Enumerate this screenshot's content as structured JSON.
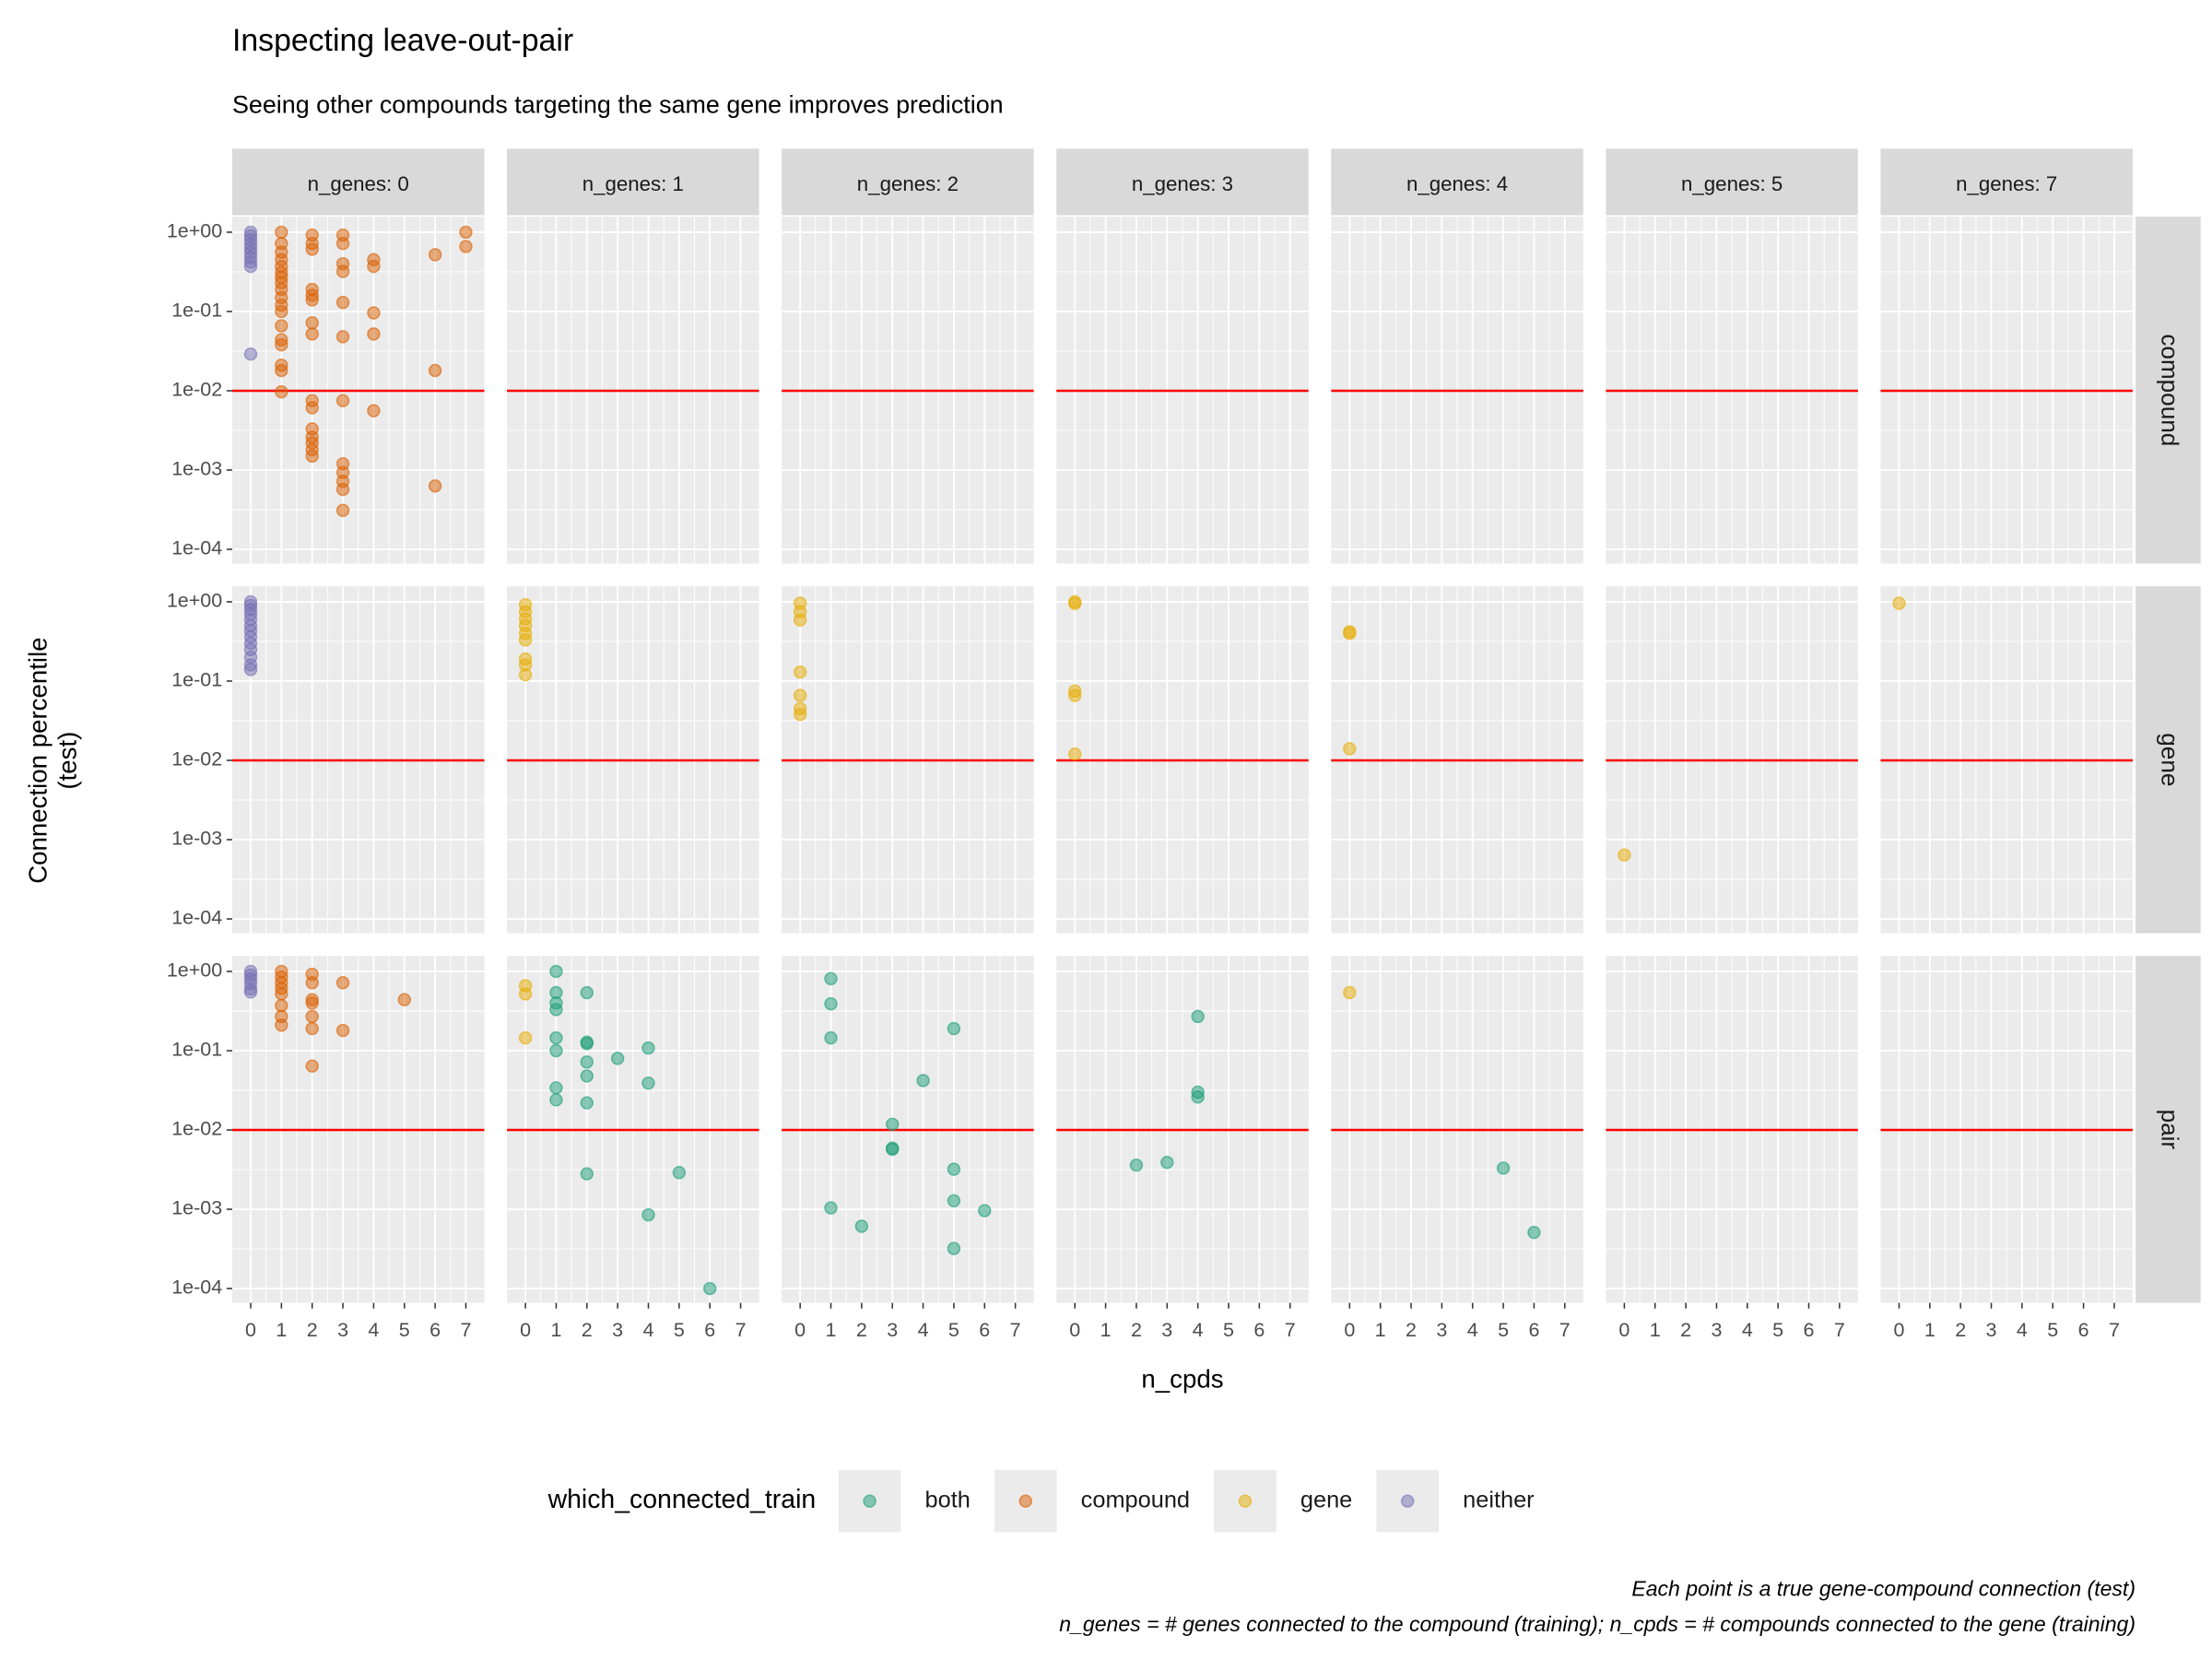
{
  "chart_data": {
    "type": "scatter",
    "title": "Inspecting leave-out-pair",
    "subtitle": "Seeing other compounds targeting the same gene improves prediction",
    "x_label": "n_cpds",
    "y_label": [
      "Connection percentile",
      "(test)"
    ],
    "caption": [
      "Each point is a true gene-compound connection (test)",
      "n_genes = # genes connected to the compound (training); n_cpds = # compounds connected to the gene (training)"
    ],
    "legend_title": "which_connected_train",
    "facet_columns": [
      "n_genes: 0",
      "n_genes: 1",
      "n_genes: 2",
      "n_genes: 3",
      "n_genes: 4",
      "n_genes: 5",
      "n_genes: 7"
    ],
    "facet_rows": [
      "compound",
      "gene",
      "pair"
    ],
    "log_y": true,
    "grid": true,
    "hline": {
      "value": 0.01,
      "color": "#ff0000"
    },
    "xlim": [
      -0.6,
      7.6
    ],
    "xticks": [
      0,
      1,
      2,
      3,
      4,
      5,
      6,
      7
    ],
    "ylim": [
      6.6e-05,
      1.57
    ],
    "yticks": [
      {
        "value": 0.0001,
        "label": "1e-04"
      },
      {
        "value": 0.001,
        "label": "1e-03"
      },
      {
        "value": 0.01,
        "label": "1e-02"
      },
      {
        "value": 0.1,
        "label": "1e-01"
      },
      {
        "value": 1,
        "label": "1e+00"
      }
    ],
    "series": [
      {
        "name": "both",
        "color": "#1b9e77",
        "x": [
          1,
          1,
          1,
          1,
          1,
          1,
          1,
          1,
          2,
          2,
          2,
          2,
          2,
          2,
          2,
          3,
          4,
          4,
          4,
          5,
          6,
          1,
          1,
          1,
          1,
          2,
          3,
          3,
          3,
          4,
          5,
          5,
          5,
          5,
          6,
          2,
          3,
          4,
          4,
          4,
          5,
          6
        ],
        "y": [
          1.0,
          0.54,
          0.4,
          0.33,
          0.145,
          0.1,
          0.034,
          0.024,
          0.54,
          0.128,
          0.123,
          0.072,
          0.048,
          0.022,
          0.0028,
          0.08,
          0.108,
          0.039,
          0.00085,
          0.0029,
          0.0001,
          0.81,
          0.39,
          0.145,
          0.00104,
          0.00061,
          0.0118,
          0.0059,
          0.0057,
          0.042,
          0.19,
          0.0032,
          0.00128,
          0.00032,
          0.00096,
          0.0036,
          0.0039,
          0.27,
          0.03,
          0.026,
          0.0033,
          0.00051
        ],
        "panel_row": [
          2,
          2,
          2,
          2,
          2,
          2,
          2,
          2,
          2,
          2,
          2,
          2,
          2,
          2,
          2,
          2,
          2,
          2,
          2,
          2,
          2,
          2,
          2,
          2,
          2,
          2,
          2,
          2,
          2,
          2,
          2,
          2,
          2,
          2,
          2,
          2,
          2,
          2,
          2,
          2,
          2,
          2
        ],
        "panel_col": [
          1,
          1,
          1,
          1,
          1,
          1,
          1,
          1,
          1,
          1,
          1,
          1,
          1,
          1,
          1,
          1,
          1,
          1,
          1,
          1,
          1,
          2,
          2,
          2,
          2,
          2,
          2,
          2,
          2,
          2,
          2,
          2,
          2,
          2,
          2,
          3,
          3,
          3,
          3,
          3,
          4,
          4
        ]
      },
      {
        "name": "compound",
        "color": "#d95f02",
        "x": [
          1,
          1,
          1,
          1,
          1,
          1,
          1,
          1,
          1,
          1,
          1,
          1,
          1,
          1,
          1,
          1,
          1,
          1,
          2,
          2,
          2,
          2,
          2,
          2,
          2,
          2,
          2,
          2,
          2,
          2,
          2,
          2,
          2,
          3,
          3,
          3,
          3,
          3,
          3,
          3,
          3,
          3,
          3,
          3,
          3,
          4,
          4,
          4,
          4,
          4,
          6,
          6,
          6,
          7,
          7,
          1,
          1,
          1,
          1,
          1,
          1,
          1,
          1,
          2,
          2,
          2,
          2,
          2,
          2,
          2,
          3,
          3,
          5
        ],
        "y": [
          1.0,
          0.72,
          0.56,
          0.45,
          0.37,
          0.31,
          0.27,
          0.23,
          0.19,
          0.15,
          0.12,
          0.1,
          0.066,
          0.044,
          0.038,
          0.021,
          0.018,
          0.0097,
          0.92,
          0.72,
          0.61,
          0.19,
          0.16,
          0.14,
          0.072,
          0.052,
          0.0075,
          0.0061,
          0.0033,
          0.0026,
          0.0022,
          0.0018,
          0.0015,
          0.92,
          0.72,
          0.4,
          0.32,
          0.13,
          0.048,
          0.0075,
          0.0012,
          0.00093,
          0.00072,
          0.00057,
          0.00031,
          0.45,
          0.37,
          0.096,
          0.052,
          0.0056,
          0.52,
          0.018,
          0.00063,
          1.0,
          0.66,
          1.0,
          0.85,
          0.72,
          0.61,
          0.52,
          0.37,
          0.27,
          0.21,
          0.92,
          0.72,
          0.44,
          0.4,
          0.27,
          0.19,
          0.064,
          0.72,
          0.18,
          0.44
        ],
        "panel_row": [
          0,
          0,
          0,
          0,
          0,
          0,
          0,
          0,
          0,
          0,
          0,
          0,
          0,
          0,
          0,
          0,
          0,
          0,
          0,
          0,
          0,
          0,
          0,
          0,
          0,
          0,
          0,
          0,
          0,
          0,
          0,
          0,
          0,
          0,
          0,
          0,
          0,
          0,
          0,
          0,
          0,
          0,
          0,
          0,
          0,
          0,
          0,
          0,
          0,
          0,
          0,
          0,
          0,
          0,
          0,
          2,
          2,
          2,
          2,
          2,
          2,
          2,
          2,
          2,
          2,
          2,
          2,
          2,
          2,
          2,
          2,
          2,
          2
        ],
        "panel_col": [
          0,
          0,
          0,
          0,
          0,
          0,
          0,
          0,
          0,
          0,
          0,
          0,
          0,
          0,
          0,
          0,
          0,
          0,
          0,
          0,
          0,
          0,
          0,
          0,
          0,
          0,
          0,
          0,
          0,
          0,
          0,
          0,
          0,
          0,
          0,
          0,
          0,
          0,
          0,
          0,
          0,
          0,
          0,
          0,
          0,
          0,
          0,
          0,
          0,
          0,
          0,
          0,
          0,
          0,
          0,
          0,
          0,
          0,
          0,
          0,
          0,
          0,
          0,
          0,
          0,
          0,
          0,
          0,
          0,
          0,
          0,
          0,
          0
        ]
      },
      {
        "name": "gene",
        "color": "#e6ab02",
        "x": [
          0,
          0,
          0,
          0,
          0,
          0,
          0,
          0,
          0,
          0,
          0,
          0,
          0,
          0,
          0,
          0,
          0,
          0,
          0,
          0,
          0,
          0,
          0,
          0,
          0,
          0,
          0,
          0,
          0,
          0
        ],
        "y": [
          0.92,
          0.75,
          0.61,
          0.5,
          0.4,
          0.33,
          0.19,
          0.16,
          0.12,
          0.96,
          0.75,
          0.59,
          0.13,
          0.066,
          0.045,
          0.038,
          1.0,
          0.95,
          0.075,
          0.066,
          0.012,
          0.42,
          0.4,
          0.014,
          0.00064,
          0.96,
          0.66,
          0.52,
          0.145,
          0.54
        ],
        "panel_row": [
          1,
          1,
          1,
          1,
          1,
          1,
          1,
          1,
          1,
          1,
          1,
          1,
          1,
          1,
          1,
          1,
          1,
          1,
          1,
          1,
          1,
          1,
          1,
          1,
          1,
          1,
          2,
          2,
          2,
          2
        ],
        "panel_col": [
          1,
          1,
          1,
          1,
          1,
          1,
          1,
          1,
          1,
          2,
          2,
          2,
          2,
          2,
          2,
          2,
          3,
          3,
          3,
          3,
          3,
          4,
          4,
          4,
          5,
          6,
          1,
          1,
          1,
          4
        ]
      },
      {
        "name": "neither",
        "color": "#7570b3",
        "x": [
          0,
          0,
          0,
          0,
          0,
          0,
          0,
          0,
          0,
          0,
          0,
          0,
          0,
          0,
          0,
          0,
          0,
          0,
          0,
          0,
          0,
          0,
          0,
          0,
          0,
          0,
          0,
          0,
          0
        ],
        "y": [
          1.0,
          0.9,
          0.8,
          0.7,
          0.62,
          0.55,
          0.48,
          0.42,
          0.37,
          0.029,
          1.0,
          0.9,
          0.8,
          0.7,
          0.6,
          0.5,
          0.43,
          0.36,
          0.3,
          0.25,
          0.2,
          0.16,
          0.14,
          1.0,
          0.9,
          0.8,
          0.7,
          0.6,
          0.55
        ],
        "panel_row": [
          0,
          0,
          0,
          0,
          0,
          0,
          0,
          0,
          0,
          0,
          1,
          1,
          1,
          1,
          1,
          1,
          1,
          1,
          1,
          1,
          1,
          1,
          1,
          2,
          2,
          2,
          2,
          2,
          2
        ],
        "panel_col": [
          0,
          0,
          0,
          0,
          0,
          0,
          0,
          0,
          0,
          0,
          0,
          0,
          0,
          0,
          0,
          0,
          0,
          0,
          0,
          0,
          0,
          0,
          0,
          0,
          0,
          0,
          0,
          0,
          0
        ]
      }
    ]
  }
}
